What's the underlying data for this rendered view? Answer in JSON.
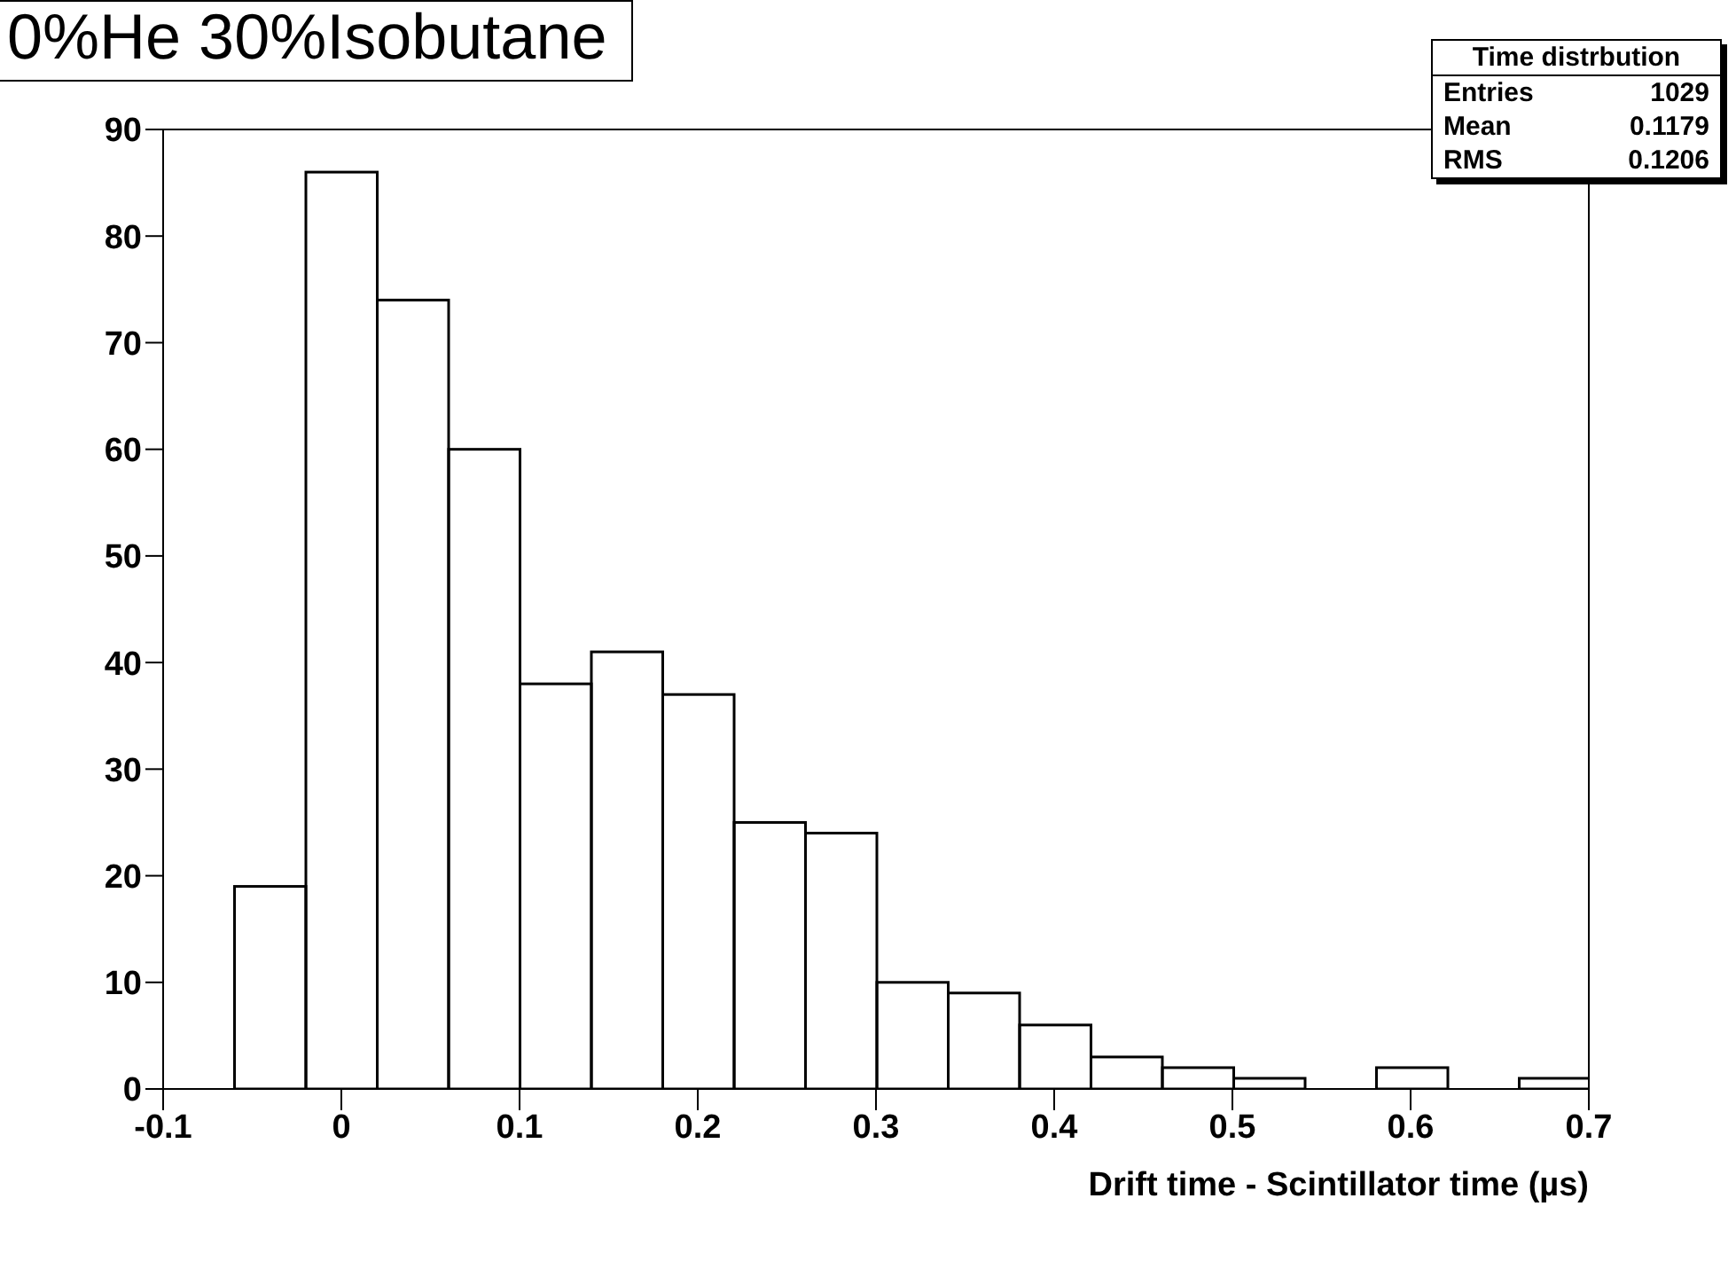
{
  "chart_data": {
    "type": "histogram",
    "title": "0%He 30%Isobutane",
    "xlabel": "Drift time - Scintillator time (µs)",
    "bins": [
      -0.06,
      -0.02,
      0.02,
      0.06,
      0.1,
      0.14,
      0.18,
      0.22,
      0.26,
      0.3,
      0.34,
      0.38,
      0.42,
      0.46,
      0.5,
      0.54,
      0.58,
      0.62,
      0.66,
      0.7
    ],
    "values": [
      19,
      86,
      74,
      60,
      38,
      41,
      37,
      25,
      24,
      10,
      9,
      6,
      3,
      2,
      1,
      0,
      2,
      0,
      1
    ],
    "color": "#000000",
    "xlim": [
      -0.1,
      0.7
    ],
    "xticks": [
      -0.1,
      0,
      0.1,
      0.2,
      0.3,
      0.4,
      0.5,
      0.6,
      0.7
    ],
    "ylim": [
      0,
      90
    ],
    "yticks": [
      0,
      10,
      20,
      30,
      40,
      50,
      60,
      70,
      80,
      90
    ],
    "annotations": [
      "Time distrbution",
      "Entries",
      "1029",
      "Mean",
      "0.1179",
      "RMS",
      "0.1206"
    ]
  }
}
